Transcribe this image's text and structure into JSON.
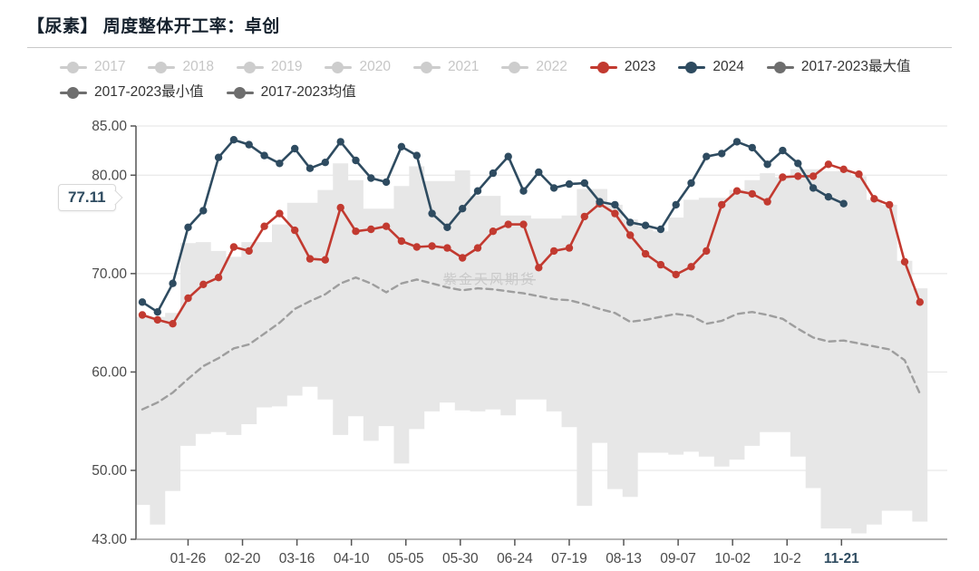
{
  "header": {
    "title": "【尿素】 周度整体开工率：卓创"
  },
  "legend": {
    "rows": [
      [
        {
          "label": "2017",
          "color": "#cdcdcd",
          "text_color": "#c6c6c6",
          "active": false
        },
        {
          "label": "2018",
          "color": "#cdcdcd",
          "text_color": "#c6c6c6",
          "active": false
        },
        {
          "label": "2019",
          "color": "#cdcdcd",
          "text_color": "#c6c6c6",
          "active": false
        },
        {
          "label": "2020",
          "color": "#cdcdcd",
          "text_color": "#c6c6c6",
          "active": false
        },
        {
          "label": "2021",
          "color": "#cdcdcd",
          "text_color": "#c6c6c6",
          "active": false
        },
        {
          "label": "2022",
          "color": "#cdcdcd",
          "text_color": "#c6c6c6",
          "active": false
        },
        {
          "label": "2023",
          "color": "#c23a30",
          "text_color": "#333333",
          "active": true
        },
        {
          "label": "2024",
          "color": "#2e4b60",
          "text_color": "#333333",
          "active": true
        },
        {
          "label": "2017-2023最大值",
          "color": "#6e6e6e",
          "text_color": "#333333",
          "active": true
        }
      ],
      [
        {
          "label": "2017-2023最小值",
          "color": "#6e6e6e",
          "text_color": "#333333",
          "active": true
        },
        {
          "label": "2017-2023均值",
          "color": "#6e6e6e",
          "text_color": "#333333",
          "active": true
        }
      ]
    ]
  },
  "chart_data": {
    "type": "line",
    "title": "【尿素】 周度整体开工率：卓创",
    "ylabel": "",
    "xlabel": "",
    "ylim": [
      43,
      85
    ],
    "grid": true,
    "watermark": "紫金天风期货",
    "y_ticks": [
      {
        "v": 85,
        "label": "85.00"
      },
      {
        "v": 80,
        "label": "80.00"
      },
      {
        "v": 70,
        "label": "70.00"
      },
      {
        "v": 60,
        "label": "60.00"
      },
      {
        "v": 50,
        "label": "50.00"
      },
      {
        "v": 43,
        "label": "43.00"
      }
    ],
    "x_ticks": [
      {
        "label": "01-26",
        "k": 3.0,
        "emphasis": false
      },
      {
        "label": "02-20",
        "k": 6.571,
        "emphasis": false
      },
      {
        "label": "03-16",
        "k": 10.143,
        "emphasis": false
      },
      {
        "label": "04-10",
        "k": 13.714,
        "emphasis": false
      },
      {
        "label": "05-05",
        "k": 17.286,
        "emphasis": false
      },
      {
        "label": "05-30",
        "k": 20.857,
        "emphasis": false
      },
      {
        "label": "06-24",
        "k": 24.429,
        "emphasis": false
      },
      {
        "label": "07-19",
        "k": 28.0,
        "emphasis": false
      },
      {
        "label": "08-13",
        "k": 31.571,
        "emphasis": false
      },
      {
        "label": "09-07",
        "k": 35.143,
        "emphasis": false
      },
      {
        "label": "10-02",
        "k": 38.714,
        "emphasis": false
      },
      {
        "label": "10-2",
        "k": 42.286,
        "emphasis": false
      },
      {
        "label": "11-21",
        "k": 45.857,
        "emphasis": true
      }
    ],
    "band": {
      "name_max": "2017-2023最大值",
      "name_min": "2017-2023最小值",
      "color": "#e7e7e7",
      "max": [
        65.6,
        65.6,
        66.0,
        73.1,
        73.2,
        72.3,
        71.7,
        73.2,
        73.2,
        75.0,
        77.2,
        77.2,
        78.5,
        81.2,
        79.5,
        76.6,
        76.6,
        78.9,
        80.9,
        79.4,
        79.4,
        80.5,
        77.9,
        77.9,
        75.9,
        75.9,
        75.6,
        75.6,
        75.9,
        78.6,
        78.6,
        77.0,
        75.5,
        74.8,
        74.3,
        75.7,
        77.5,
        77.7,
        77.7,
        78.5,
        79.5,
        80.2,
        79.8,
        80.6,
        80.6,
        80.4,
        80.4,
        79.9,
        77.5,
        77.0,
        71.3,
        68.5
      ],
      "min": [
        46.5,
        44.5,
        47.9,
        52.5,
        53.7,
        53.9,
        53.6,
        54.7,
        56.4,
        56.5,
        57.6,
        58.5,
        57.2,
        53.6,
        55.5,
        53.0,
        54.5,
        50.7,
        54.2,
        56.0,
        56.9,
        56.1,
        56.0,
        56.2,
        55.6,
        57.2,
        57.2,
        56.0,
        54.4,
        46.4,
        52.8,
        48.1,
        47.3,
        51.8,
        51.8,
        51.6,
        51.9,
        51.4,
        50.4,
        51.1,
        52.5,
        53.9,
        53.9,
        51.4,
        48.2,
        44.1,
        44.1,
        43.6,
        44.5,
        45.9,
        45.9,
        44.8
      ]
    },
    "series": [
      {
        "name": "2017-2023均值",
        "style": "dashed",
        "color": "#9e9e9e",
        "values": [
          56.2,
          56.9,
          57.9,
          59.3,
          60.6,
          61.4,
          62.4,
          62.8,
          63.9,
          65.0,
          66.4,
          67.2,
          67.9,
          69.0,
          69.6,
          69.0,
          68.1,
          69.0,
          69.4,
          69.0,
          68.6,
          68.3,
          68.5,
          68.4,
          68.2,
          68.0,
          67.7,
          67.4,
          67.3,
          66.9,
          66.4,
          66.0,
          65.1,
          65.3,
          65.6,
          65.9,
          65.7,
          64.9,
          65.2,
          65.9,
          66.1,
          65.8,
          65.4,
          64.4,
          63.5,
          63.1,
          63.2,
          62.9,
          62.6,
          62.3,
          61.2,
          57.8
        ]
      },
      {
        "name": "2023",
        "style": "marker",
        "color": "#c23a30",
        "values": [
          65.8,
          65.3,
          64.9,
          67.5,
          68.9,
          69.6,
          72.7,
          72.3,
          74.8,
          76.1,
          74.4,
          71.5,
          71.4,
          76.7,
          74.3,
          74.5,
          74.8,
          73.3,
          72.7,
          72.8,
          72.6,
          71.6,
          72.6,
          74.3,
          75.0,
          75.0,
          70.6,
          72.3,
          72.6,
          75.8,
          77.1,
          76.1,
          73.9,
          72.0,
          70.9,
          69.9,
          70.7,
          72.3,
          77.0,
          78.4,
          78.1,
          77.3,
          79.8,
          79.9,
          79.9,
          81.1,
          80.6,
          80.1,
          77.6,
          77.0,
          71.2,
          67.1
        ]
      },
      {
        "name": "2024",
        "style": "marker",
        "color": "#2e4b60",
        "values": [
          67.1,
          66.1,
          69.0,
          74.7,
          76.4,
          81.8,
          83.6,
          83.1,
          82.0,
          81.2,
          82.7,
          80.7,
          81.3,
          83.4,
          81.5,
          79.7,
          79.3,
          82.9,
          82.0,
          76.1,
          74.7,
          76.6,
          78.4,
          80.2,
          81.9,
          78.4,
          80.3,
          78.7,
          79.1,
          79.2,
          77.3,
          77.0,
          75.2,
          74.9,
          74.5,
          77.0,
          79.2,
          81.9,
          82.2,
          83.4,
          82.8,
          81.1,
          82.5,
          81.2,
          78.7,
          77.8,
          77.11
        ]
      }
    ],
    "end_label": {
      "text": "77.11",
      "series": "2024"
    }
  }
}
